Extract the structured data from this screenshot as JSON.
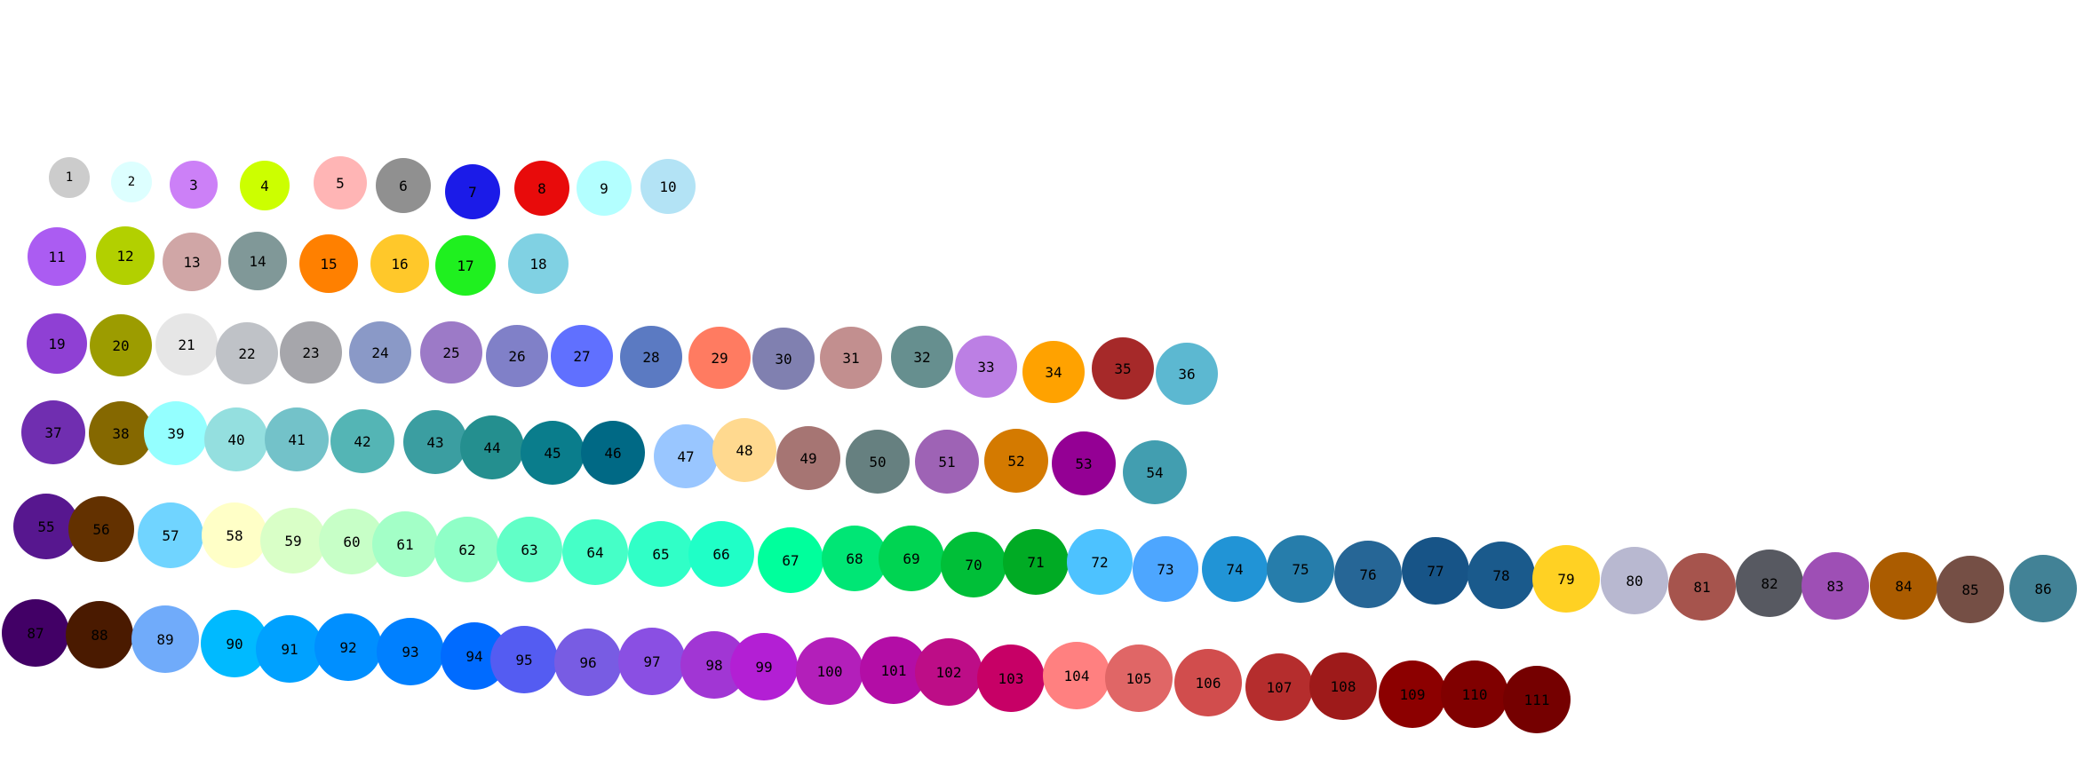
{
  "balls": [
    {
      "label": "1",
      "color": "#cccccc"
    },
    {
      "label": "2",
      "color": "#ddffff"
    },
    {
      "label": "3",
      "color": "#cc80f7"
    },
    {
      "label": "4",
      "color": "#ccff00"
    },
    {
      "label": "5",
      "color": "#ffb5b5"
    },
    {
      "label": "6",
      "color": "#909090"
    },
    {
      "label": "7",
      "color": "#1b1be8"
    },
    {
      "label": "8",
      "color": "#e80b0b"
    },
    {
      "label": "9",
      "color": "#b3ffff"
    },
    {
      "label": "10",
      "color": "#b3e3f5"
    },
    {
      "label": "11",
      "color": "#ab5cf2"
    },
    {
      "label": "12",
      "color": "#b2d000"
    },
    {
      "label": "13",
      "color": "#d0a6a6"
    },
    {
      "label": "14",
      "color": "#809898"
    },
    {
      "label": "15",
      "color": "#ff8000"
    },
    {
      "label": "16",
      "color": "#ffc82a"
    },
    {
      "label": "17",
      "color": "#1ff01f"
    },
    {
      "label": "18",
      "color": "#80d1e3"
    },
    {
      "label": "19",
      "color": "#8f40d4"
    },
    {
      "label": "20",
      "color": "#9c9c00"
    },
    {
      "label": "21",
      "color": "#e6e6e6"
    },
    {
      "label": "22",
      "color": "#bfc2c7"
    },
    {
      "label": "23",
      "color": "#a6a6ab"
    },
    {
      "label": "24",
      "color": "#8a99c7"
    },
    {
      "label": "25",
      "color": "#9c7ac7"
    },
    {
      "label": "26",
      "color": "#8080c8"
    },
    {
      "label": "27",
      "color": "#6070ff"
    },
    {
      "label": "28",
      "color": "#5b7ac2"
    },
    {
      "label": "29",
      "color": "#ff7b61"
    },
    {
      "label": "30",
      "color": "#8080b0"
    },
    {
      "label": "31",
      "color": "#c28f8f"
    },
    {
      "label": "32",
      "color": "#668f8f"
    },
    {
      "label": "33",
      "color": "#bc7fe4"
    },
    {
      "label": "34",
      "color": "#ffa200"
    },
    {
      "label": "35",
      "color": "#a62929"
    },
    {
      "label": "36",
      "color": "#5cb8d1"
    },
    {
      "label": "37",
      "color": "#702eb0"
    },
    {
      "label": "38",
      "color": "#856800"
    },
    {
      "label": "39",
      "color": "#94ffff"
    },
    {
      "label": "40",
      "color": "#94dfdf"
    },
    {
      "label": "41",
      "color": "#73c2c9"
    },
    {
      "label": "42",
      "color": "#54b5b5"
    },
    {
      "label": "43",
      "color": "#3b9ea1"
    },
    {
      "label": "44",
      "color": "#248f8f"
    },
    {
      "label": "45",
      "color": "#0a7d8c"
    },
    {
      "label": "46",
      "color": "#006985"
    },
    {
      "label": "47",
      "color": "#99c6ff"
    },
    {
      "label": "48",
      "color": "#ffd98f"
    },
    {
      "label": "49",
      "color": "#a67573"
    },
    {
      "label": "50",
      "color": "#668080"
    },
    {
      "label": "51",
      "color": "#9e63b5"
    },
    {
      "label": "52",
      "color": "#d47a00"
    },
    {
      "label": "53",
      "color": "#940094"
    },
    {
      "label": "54",
      "color": "#429eb0"
    },
    {
      "label": "55",
      "color": "#57178f"
    },
    {
      "label": "56",
      "color": "#633100"
    },
    {
      "label": "57",
      "color": "#70d4ff"
    },
    {
      "label": "58",
      "color": "#ffffc7"
    },
    {
      "label": "59",
      "color": "#d9ffc7"
    },
    {
      "label": "60",
      "color": "#c7ffc7"
    },
    {
      "label": "61",
      "color": "#a3ffc7"
    },
    {
      "label": "62",
      "color": "#8fffc7"
    },
    {
      "label": "63",
      "color": "#61ffc7"
    },
    {
      "label": "64",
      "color": "#45ffc7"
    },
    {
      "label": "65",
      "color": "#30ffc7"
    },
    {
      "label": "66",
      "color": "#1fffc7"
    },
    {
      "label": "67",
      "color": "#00ff9c"
    },
    {
      "label": "68",
      "color": "#00e675"
    },
    {
      "label": "69",
      "color": "#00d452"
    },
    {
      "label": "70",
      "color": "#00bf38"
    },
    {
      "label": "71",
      "color": "#00ab24"
    },
    {
      "label": "72",
      "color": "#4dc2ff"
    },
    {
      "label": "73",
      "color": "#4da6ff"
    },
    {
      "label": "74",
      "color": "#2194d6"
    },
    {
      "label": "75",
      "color": "#267dab"
    },
    {
      "label": "76",
      "color": "#266696"
    },
    {
      "label": "77",
      "color": "#175487"
    },
    {
      "label": "78",
      "color": "#1a5a8c"
    },
    {
      "label": "79",
      "color": "#ffd123"
    },
    {
      "label": "80",
      "color": "#b8b8d0"
    },
    {
      "label": "81",
      "color": "#a6544d"
    },
    {
      "label": "82",
      "color": "#575961"
    },
    {
      "label": "83",
      "color": "#9e4fb5"
    },
    {
      "label": "84",
      "color": "#ab5c00"
    },
    {
      "label": "85",
      "color": "#754f45"
    },
    {
      "label": "86",
      "color": "#428296"
    },
    {
      "label": "87",
      "color": "#420066"
    },
    {
      "label": "88",
      "color": "#4a1a00"
    },
    {
      "label": "89",
      "color": "#70abfa"
    },
    {
      "label": "90",
      "color": "#00baff"
    },
    {
      "label": "91",
      "color": "#00a1ff"
    },
    {
      "label": "92",
      "color": "#008fff"
    },
    {
      "label": "93",
      "color": "#0080ff"
    },
    {
      "label": "94",
      "color": "#006bff"
    },
    {
      "label": "95",
      "color": "#545cf2"
    },
    {
      "label": "96",
      "color": "#785ce3"
    },
    {
      "label": "97",
      "color": "#8a4fe3"
    },
    {
      "label": "98",
      "color": "#a136d4"
    },
    {
      "label": "99",
      "color": "#b31fd4"
    },
    {
      "label": "100",
      "color": "#b31fba"
    },
    {
      "label": "101",
      "color": "#b30da6"
    },
    {
      "label": "102",
      "color": "#bd0d87"
    },
    {
      "label": "103",
      "color": "#c70066"
    },
    {
      "label": "104",
      "color": "#ff8080"
    },
    {
      "label": "105",
      "color": "#e06666"
    },
    {
      "label": "106",
      "color": "#d14d4d"
    },
    {
      "label": "107",
      "color": "#b52d2d"
    },
    {
      "label": "108",
      "color": "#9e1a1a"
    },
    {
      "label": "109",
      "color": "#8c0000"
    },
    {
      "label": "110",
      "color": "#800000"
    },
    {
      "label": "111",
      "color": "#750000"
    }
  ]
}
